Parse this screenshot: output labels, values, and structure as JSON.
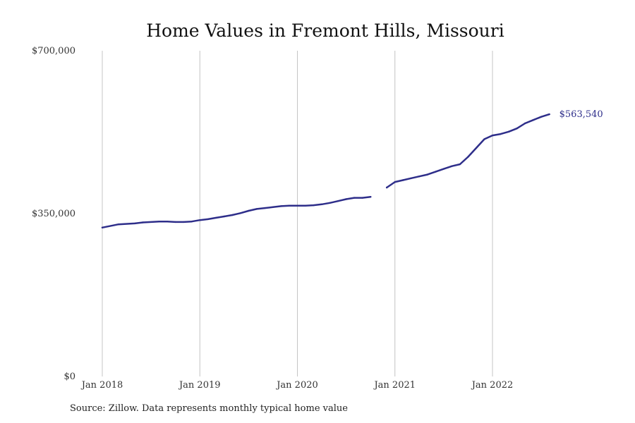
{
  "chart_data": {
    "type": "line",
    "title": "Home Values in Fremont Hills, Missouri",
    "xlabel": "",
    "ylabel": "",
    "ylim": [
      0,
      700000
    ],
    "y_ticks": [
      {
        "value": 0,
        "label": "$0"
      },
      {
        "value": 350000,
        "label": "$350,000"
      },
      {
        "value": 700000,
        "label": "$700,000"
      }
    ],
    "x_ticks": [
      {
        "value": "2018-01",
        "label": "Jan 2018"
      },
      {
        "value": "2019-01",
        "label": "Jan 2019"
      },
      {
        "value": "2020-01",
        "label": "Jan 2020"
      },
      {
        "value": "2021-01",
        "label": "Jan 2021"
      },
      {
        "value": "2022-01",
        "label": "Jan 2022"
      }
    ],
    "grid": "vertical",
    "series": [
      {
        "color": "#2e2e8a",
        "end_label": "$563,540",
        "points": [
          {
            "x": "2018-01",
            "y": 320000
          },
          {
            "x": "2018-03",
            "y": 327000
          },
          {
            "x": "2018-05",
            "y": 329000
          },
          {
            "x": "2018-06",
            "y": 331000
          },
          {
            "x": "2018-08",
            "y": 333000
          },
          {
            "x": "2018-09",
            "y": 333000
          },
          {
            "x": "2018-10",
            "y": 332000
          },
          {
            "x": "2018-11",
            "y": 332000
          },
          {
            "x": "2018-12",
            "y": 333000
          },
          {
            "x": "2019-01",
            "y": 336000
          },
          {
            "x": "2019-02",
            "y": 338000
          },
          {
            "x": "2019-03",
            "y": 341000
          },
          {
            "x": "2019-04",
            "y": 344000
          },
          {
            "x": "2019-05",
            "y": 347000
          },
          {
            "x": "2019-06",
            "y": 351000
          },
          {
            "x": "2019-07",
            "y": 356000
          },
          {
            "x": "2019-08",
            "y": 360000
          },
          {
            "x": "2019-09",
            "y": 362000
          },
          {
            "x": "2019-10",
            "y": 364000
          },
          {
            "x": "2019-11",
            "y": 366000
          },
          {
            "x": "2019-12",
            "y": 367000
          },
          {
            "x": "2020-01",
            "y": 367000
          },
          {
            "x": "2020-02",
            "y": 367000
          },
          {
            "x": "2020-03",
            "y": 368000
          },
          {
            "x": "2020-04",
            "y": 370000
          },
          {
            "x": "2020-05",
            "y": 373000
          },
          {
            "x": "2020-06",
            "y": 377000
          },
          {
            "x": "2020-07",
            "y": 381000
          },
          {
            "x": "2020-08",
            "y": 384000
          },
          {
            "x": "2020-09",
            "y": 384000
          },
          {
            "x": "2020-10",
            "y": 386000
          },
          {
            "x": "2020-11",
            "y": null
          },
          {
            "x": "2020-12",
            "y": 406000
          },
          {
            "x": "2021-01",
            "y": 418000
          },
          {
            "x": "2021-02",
            "y": 422000
          },
          {
            "x": "2021-03",
            "y": 426000
          },
          {
            "x": "2021-04",
            "y": 430000
          },
          {
            "x": "2021-05",
            "y": 434000
          },
          {
            "x": "2021-06",
            "y": 440000
          },
          {
            "x": "2021-07",
            "y": 446000
          },
          {
            "x": "2021-08",
            "y": 452000
          },
          {
            "x": "2021-09",
            "y": 456000
          },
          {
            "x": "2021-10",
            "y": 472000
          },
          {
            "x": "2021-11",
            "y": 491000
          },
          {
            "x": "2021-12",
            "y": 510000
          },
          {
            "x": "2022-01",
            "y": 518000
          },
          {
            "x": "2022-02",
            "y": 521000
          },
          {
            "x": "2022-03",
            "y": 526000
          },
          {
            "x": "2022-04",
            "y": 533000
          },
          {
            "x": "2022-05",
            "y": 544000
          },
          {
            "x": "2022-06",
            "y": 551000
          },
          {
            "x": "2022-07",
            "y": 558000
          },
          {
            "x": "2022-08",
            "y": 563540
          }
        ]
      }
    ]
  },
  "source_note": "Source: Zillow. Data represents monthly typical home value"
}
